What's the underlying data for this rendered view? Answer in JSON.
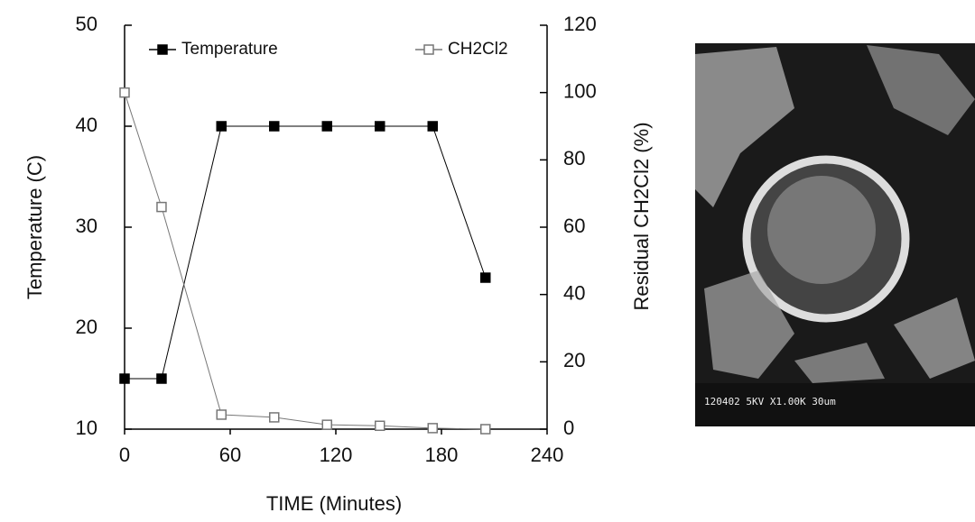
{
  "chart_data": {
    "type": "line",
    "x_label": "TIME  (Minutes)",
    "y_label": "Temperature  (C)",
    "y2_label": "Residual  CH2Cl2  (%)",
    "x": [
      0,
      21,
      55,
      85,
      115,
      145,
      175,
      205
    ],
    "series": [
      {
        "name": "Temperature",
        "color": "#000000",
        "values": [
          15,
          15,
          40,
          40,
          40,
          40,
          40,
          25
        ]
      },
      {
        "name": "CH2Cl2",
        "color": "#777777",
        "axis": "y2",
        "values": [
          100,
          66,
          4.3,
          3.5,
          1.3,
          1,
          0.3,
          0
        ]
      }
    ],
    "xlim": [
      0,
      240
    ],
    "xticks": [
      0,
      60,
      120,
      180,
      240
    ],
    "ylim": [
      10,
      50
    ],
    "yticks": [
      10,
      20,
      30,
      40,
      50
    ],
    "y2lim": [
      0,
      120
    ],
    "y2ticks": [
      0,
      20,
      40,
      60,
      80,
      100,
      120
    ],
    "legend": "top",
    "image_caption": "120402  5KV  X1.00K    30um"
  }
}
